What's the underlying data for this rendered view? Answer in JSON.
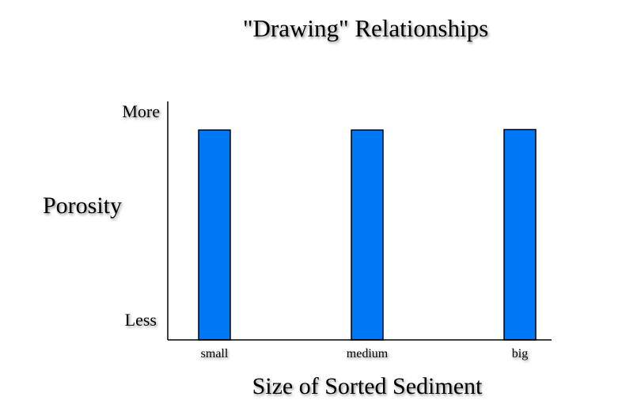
{
  "chart_data": {
    "type": "bar",
    "title": "\"Drawing\" Relationships",
    "xlabel": "Size of Sorted Sediment",
    "ylabel": "Porosity",
    "categories": [
      "small",
      "medium",
      "big"
    ],
    "values": [
      0.88,
      0.88,
      0.882
    ],
    "ylim": [
      0,
      1
    ],
    "y_tick_labels": {
      "low": "Less",
      "high": "More"
    },
    "grid": false,
    "legend": "none",
    "bar_color": "#0077f5"
  }
}
